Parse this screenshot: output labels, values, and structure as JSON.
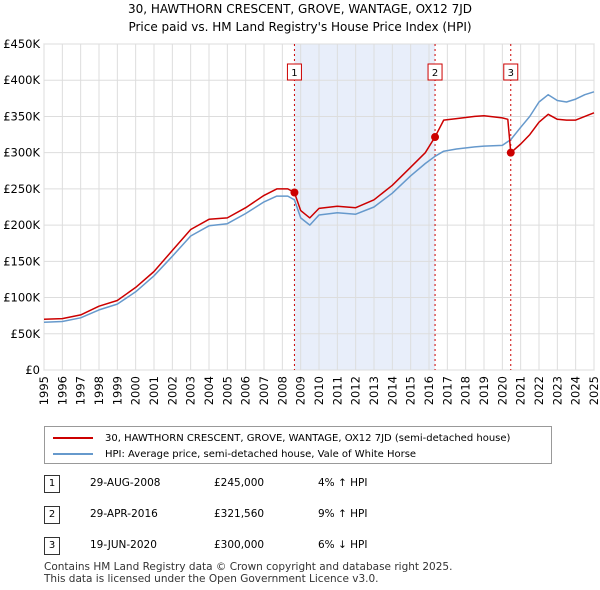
{
  "title_line1": "30, HAWTHORN CRESCENT, GROVE, WANTAGE, OX12 7JD",
  "title_line2": "Price paid vs. HM Land Registry's House Price Index (HPI)",
  "legend": {
    "property": "30, HAWTHORN CRESCENT, GROVE, WANTAGE, OX12 7JD (semi-detached house)",
    "hpi": "HPI: Average price, semi-detached house, Vale of White Horse"
  },
  "transactions": [
    {
      "num": "1",
      "date": "29-AUG-2008",
      "price": "£245,000",
      "hpi": "4% ↑ HPI"
    },
    {
      "num": "2",
      "date": "29-APR-2016",
      "price": "£321,560",
      "hpi": "9% ↑ HPI"
    },
    {
      "num": "3",
      "date": "19-JUN-2020",
      "price": "£300,000",
      "hpi": "6% ↓ HPI"
    }
  ],
  "footer_line1": "Contains HM Land Registry data © Crown copyright and database right 2025.",
  "footer_line2": "This data is licensed under the Open Government Licence v3.0.",
  "colors": {
    "property": "#cc0000",
    "hpi": "#6699cc",
    "shade": "#e8eefa"
  },
  "chart_data": {
    "type": "line",
    "xlim": [
      1995,
      2025
    ],
    "ylim": [
      0,
      450000
    ],
    "yticks": [
      0,
      50000,
      100000,
      150000,
      200000,
      250000,
      300000,
      350000,
      400000,
      450000
    ],
    "ytick_labels": [
      "£0",
      "£50K",
      "£100K",
      "£150K",
      "£200K",
      "£250K",
      "£300K",
      "£350K",
      "£400K",
      "£450K"
    ],
    "xticks": [
      1995,
      1996,
      1997,
      1998,
      1999,
      2000,
      2001,
      2002,
      2003,
      2004,
      2005,
      2006,
      2007,
      2008,
      2009,
      2010,
      2011,
      2012,
      2013,
      2014,
      2015,
      2016,
      2017,
      2018,
      2019,
      2020,
      2021,
      2022,
      2023,
      2024,
      2025
    ],
    "grid": true,
    "shaded_ranges": [
      [
        2008.66,
        2016.33
      ]
    ],
    "sale_markers": [
      {
        "label": "1",
        "x": 2008.66,
        "y": 245000
      },
      {
        "label": "2",
        "x": 2016.33,
        "y": 321560
      },
      {
        "label": "3",
        "x": 2020.46,
        "y": 300000
      }
    ],
    "series": [
      {
        "name": "30, HAWTHORN CRESCENT, GROVE, WANTAGE, OX12 7JD (semi-detached house)",
        "color": "#cc0000",
        "points": [
          [
            1995.0,
            70000
          ],
          [
            1996.0,
            71000
          ],
          [
            1997.0,
            76000
          ],
          [
            1998.0,
            88000
          ],
          [
            1999.0,
            96000
          ],
          [
            2000.0,
            114000
          ],
          [
            2001.0,
            136000
          ],
          [
            2002.0,
            165000
          ],
          [
            2003.0,
            194000
          ],
          [
            2004.0,
            208000
          ],
          [
            2005.0,
            210000
          ],
          [
            2006.0,
            224000
          ],
          [
            2007.0,
            241000
          ],
          [
            2007.7,
            250000
          ],
          [
            2008.3,
            250000
          ],
          [
            2008.66,
            245000
          ],
          [
            2009.0,
            220000
          ],
          [
            2009.5,
            210000
          ],
          [
            2010.0,
            223000
          ],
          [
            2011.0,
            226000
          ],
          [
            2012.0,
            224000
          ],
          [
            2013.0,
            235000
          ],
          [
            2014.0,
            255000
          ],
          [
            2015.0,
            280000
          ],
          [
            2015.8,
            300000
          ],
          [
            2016.33,
            321560
          ],
          [
            2016.8,
            345000
          ],
          [
            2017.5,
            347000
          ],
          [
            2018.5,
            350000
          ],
          [
            2019.0,
            351000
          ],
          [
            2020.0,
            348000
          ],
          [
            2020.3,
            346000
          ],
          [
            2020.46,
            300000
          ],
          [
            2021.0,
            312000
          ],
          [
            2021.5,
            325000
          ],
          [
            2022.0,
            342000
          ],
          [
            2022.5,
            353000
          ],
          [
            2023.0,
            346000
          ],
          [
            2023.5,
            345000
          ],
          [
            2024.0,
            345000
          ],
          [
            2024.5,
            350000
          ],
          [
            2025.0,
            355000
          ]
        ]
      },
      {
        "name": "HPI: Average price, semi-detached house, Vale of White Horse",
        "color": "#6699cc",
        "points": [
          [
            1995.0,
            66000
          ],
          [
            1996.0,
            67000
          ],
          [
            1997.0,
            72000
          ],
          [
            1998.0,
            83000
          ],
          [
            1999.0,
            91000
          ],
          [
            2000.0,
            108000
          ],
          [
            2001.0,
            130000
          ],
          [
            2002.0,
            157000
          ],
          [
            2003.0,
            185000
          ],
          [
            2004.0,
            199000
          ],
          [
            2005.0,
            202000
          ],
          [
            2006.0,
            216000
          ],
          [
            2007.0,
            232000
          ],
          [
            2007.7,
            240000
          ],
          [
            2008.3,
            240000
          ],
          [
            2008.66,
            235000
          ],
          [
            2009.0,
            210000
          ],
          [
            2009.5,
            200000
          ],
          [
            2010.0,
            214000
          ],
          [
            2011.0,
            217000
          ],
          [
            2012.0,
            215000
          ],
          [
            2013.0,
            225000
          ],
          [
            2014.0,
            244000
          ],
          [
            2015.0,
            268000
          ],
          [
            2015.8,
            285000
          ],
          [
            2016.33,
            295000
          ],
          [
            2016.8,
            302000
          ],
          [
            2017.5,
            305000
          ],
          [
            2018.5,
            308000
          ],
          [
            2019.0,
            309000
          ],
          [
            2020.0,
            310000
          ],
          [
            2020.46,
            318000
          ],
          [
            2021.0,
            335000
          ],
          [
            2021.5,
            350000
          ],
          [
            2022.0,
            370000
          ],
          [
            2022.5,
            380000
          ],
          [
            2023.0,
            372000
          ],
          [
            2023.5,
            370000
          ],
          [
            2024.0,
            374000
          ],
          [
            2024.5,
            380000
          ],
          [
            2025.0,
            384000
          ]
        ]
      }
    ]
  }
}
